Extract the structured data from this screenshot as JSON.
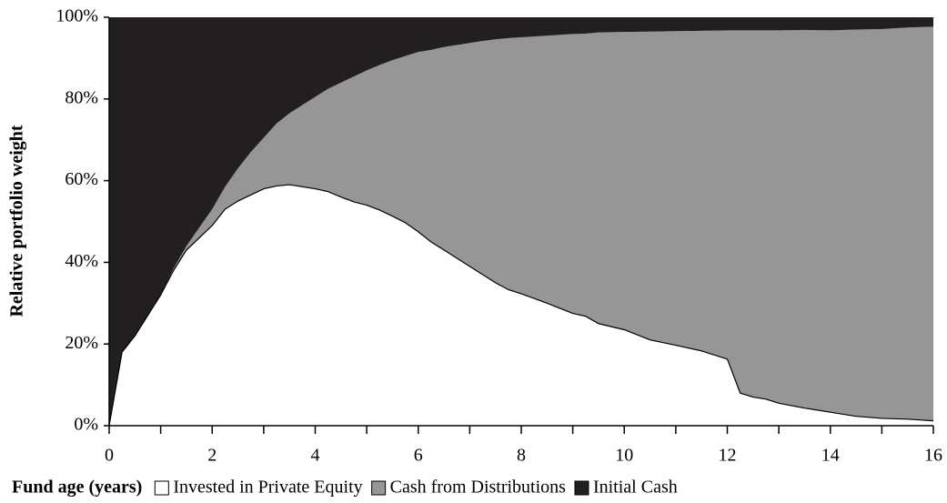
{
  "chart_data": {
    "type": "stacked-area",
    "xlabel": "Fund age (years)",
    "ylabel": "Relative portfolio weight",
    "x": [
      0,
      0.25,
      0.5,
      0.75,
      1,
      1.25,
      1.5,
      1.75,
      2,
      2.25,
      2.5,
      2.75,
      3,
      3.25,
      3.5,
      3.75,
      4,
      4.25,
      4.5,
      4.75,
      5,
      5.25,
      5.5,
      5.75,
      6,
      6.25,
      6.5,
      6.75,
      7,
      7.25,
      7.5,
      7.75,
      8,
      8.5,
      9,
      9.25,
      9.5,
      10,
      10.5,
      11,
      11.5,
      12,
      12.25,
      12.5,
      12.75,
      13,
      13.5,
      14,
      14.5,
      15,
      15.5,
      16
    ],
    "series": [
      {
        "name": "Invested in Private Equity",
        "color": "#ffffff",
        "values": [
          0,
          18,
          22,
          27,
          32,
          38,
          43,
          46,
          49,
          53,
          55,
          56.5,
          58,
          58.7,
          59,
          58.5,
          58,
          57.3,
          56,
          54.8,
          54,
          52.8,
          51.3,
          49.7,
          47.5,
          45,
          43,
          41,
          39,
          37,
          35,
          33.3,
          32.3,
          30,
          27.5,
          26.8,
          25,
          23.5,
          21,
          19.7,
          18.3,
          16.3,
          8,
          7,
          6.5,
          5.5,
          4.3,
          3.3,
          2.3,
          1.8,
          1.6,
          1.2
        ]
      },
      {
        "name": "Cash from Distributions",
        "color": "#969696",
        "values": [
          0,
          0,
          0,
          0,
          0,
          0.5,
          1,
          2.5,
          4,
          5.5,
          8,
          10.5,
          12.5,
          15.3,
          17.5,
          20,
          22.5,
          25.2,
          28,
          30.7,
          33,
          35.5,
          38.2,
          40.8,
          44,
          47,
          49.7,
          52.2,
          54.7,
          57.2,
          59.6,
          61.6,
          62.8,
          65.5,
          68.4,
          69.2,
          71.3,
          72.9,
          75.5,
          76.9,
          78.4,
          80.5,
          88.8,
          89.8,
          90.3,
          91.3,
          92.6,
          93.5,
          94.7,
          95.3,
          95.9,
          96.5
        ]
      },
      {
        "name": "Initial Cash",
        "color": "#231f20",
        "values": [
          100,
          82,
          78,
          73,
          68,
          61.5,
          56,
          51.5,
          47,
          41.5,
          37,
          33,
          29.5,
          26,
          23.5,
          21.5,
          19.5,
          17.5,
          16,
          14.5,
          13,
          11.7,
          10.5,
          9.5,
          8.5,
          8,
          7.3,
          6.8,
          6.3,
          5.8,
          5.4,
          5.1,
          4.9,
          4.5,
          4.1,
          4,
          3.7,
          3.6,
          3.5,
          3.4,
          3.3,
          3.2,
          3.2,
          3.2,
          3.2,
          3.2,
          3.1,
          3.2,
          3,
          2.9,
          2.5,
          2.3
        ]
      }
    ],
    "xlim": [
      0,
      16
    ],
    "xticks": [
      0,
      2,
      4,
      6,
      8,
      10,
      12,
      14,
      16
    ],
    "xminorticks": [
      1,
      3,
      5,
      7,
      9,
      11,
      13,
      15
    ],
    "ylim": [
      0,
      100
    ],
    "yticks": [
      {
        "value": 0,
        "label": "0%"
      },
      {
        "value": 20,
        "label": "20%"
      },
      {
        "value": 40,
        "label": "40%"
      },
      {
        "value": 60,
        "label": "60%"
      },
      {
        "value": 80,
        "label": "80%"
      },
      {
        "value": 100,
        "label": "100%"
      }
    ]
  }
}
